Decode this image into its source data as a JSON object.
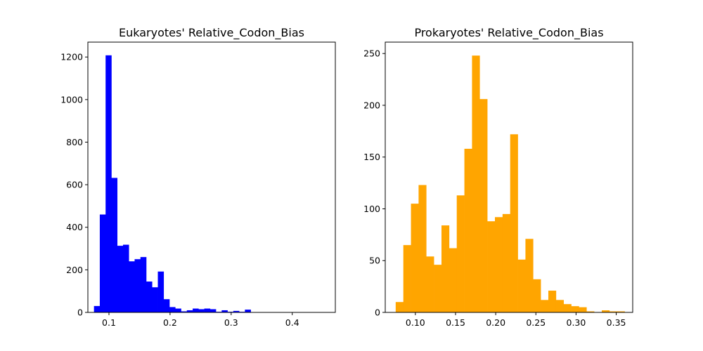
{
  "chart_data": [
    {
      "type": "bar",
      "title": "Eukaryotes' Relative_Codon_Bias",
      "xlabel": "",
      "ylabel": "",
      "color": "#0000ff",
      "xlim": [
        0.0655,
        0.4705
      ],
      "ylim": [
        0,
        1270
      ],
      "bin_start": 0.0755,
      "bin_width": 0.0095,
      "values": [
        30,
        460,
        1208,
        632,
        313,
        318,
        240,
        250,
        260,
        145,
        118,
        192,
        62,
        25,
        18,
        5,
        10,
        18,
        15,
        18,
        15,
        3,
        10,
        3,
        7,
        3,
        13,
        0,
        0,
        0
      ],
      "xticks": [
        0.1,
        0.2,
        0.3,
        0.4
      ],
      "xtick_labels": [
        "0.1",
        "0.2",
        "0.3",
        "0.4"
      ],
      "yticks": [
        0,
        200,
        400,
        600,
        800,
        1000,
        1200
      ],
      "ytick_labels": [
        "0",
        "200",
        "400",
        "600",
        "800",
        "1000",
        "1200"
      ],
      "grid": false
    },
    {
      "type": "bar",
      "title": "Prokaryotes' Relative_Codon_Bias",
      "xlabel": "",
      "ylabel": "",
      "color": "#ffa500",
      "xlim": [
        0.0625,
        0.3705
      ],
      "ylim": [
        0,
        261
      ],
      "bin_start": 0.0755,
      "bin_width": 0.0095,
      "values": [
        10,
        65,
        105,
        123,
        54,
        46,
        84,
        62,
        113,
        158,
        248,
        206,
        88,
        92,
        95,
        172,
        51,
        71,
        32,
        12,
        21,
        12,
        8,
        6,
        5,
        1,
        0,
        2,
        1,
        1
      ],
      "xticks": [
        0.1,
        0.15,
        0.2,
        0.25,
        0.3,
        0.35
      ],
      "xtick_labels": [
        "0.10",
        "0.15",
        "0.20",
        "0.25",
        "0.30",
        "0.35"
      ],
      "yticks": [
        0,
        50,
        100,
        150,
        200,
        250
      ],
      "ytick_labels": [
        "0",
        "50",
        "100",
        "150",
        "200",
        "250"
      ],
      "grid": false
    }
  ]
}
